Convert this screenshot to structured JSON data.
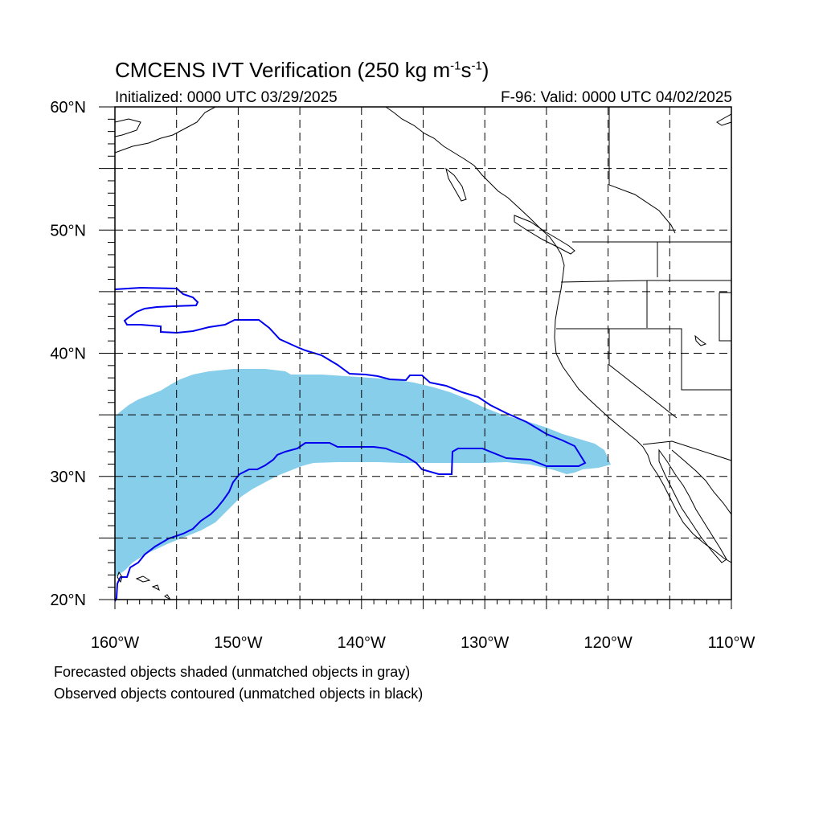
{
  "title": {
    "main": "CMCENS IVT Verification (250 kg m",
    "sup1": "-1",
    "mid": "s",
    "sup2": "-1",
    "end": ")"
  },
  "initialized": "Initialized: 0000 UTC 03/29/2025",
  "valid": "F-96: Valid: 0000 UTC 04/02/2025",
  "map": {
    "lon_range": [
      -160,
      -110
    ],
    "lat_range": [
      20,
      60
    ],
    "x_tick_labels": [
      "160°W",
      "150°W",
      "140°W",
      "130°W",
      "120°W",
      "110°W"
    ],
    "y_tick_labels": [
      "20°N",
      "30°N",
      "40°N",
      "50°N",
      "60°N"
    ],
    "grid": "dashed every 5°",
    "colors": {
      "forecast_object": "#87ceeb",
      "observed_contour": "#0000ee",
      "coastline": "#000000"
    }
  },
  "notes": [
    "Forecasted objects shaded (unmatched objects in gray)",
    "Observed objects contoured (unmatched objects in black)"
  ]
}
